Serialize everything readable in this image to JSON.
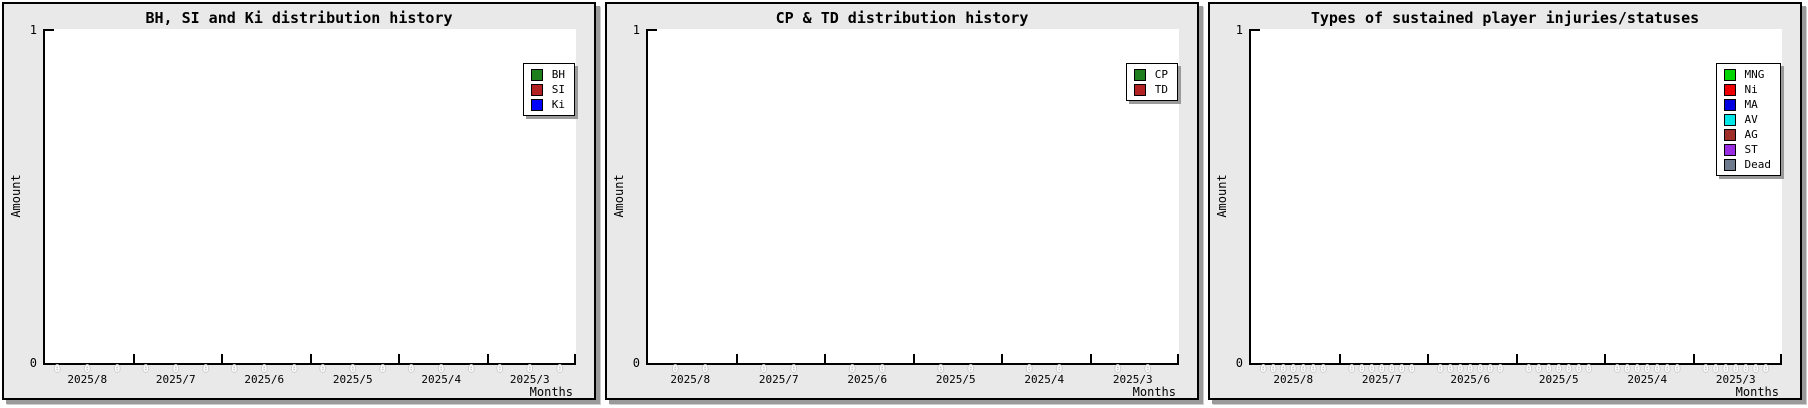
{
  "ui": {
    "value_label_color": "#ffffff",
    "panel_background": "#e9e9e9"
  },
  "chart_data": [
    {
      "type": "line",
      "title": "BH, SI and Ki distribution history",
      "xlabel": "Months",
      "ylabel": "Amount",
      "ylim": [
        0,
        1
      ],
      "yticks": [
        "0",
        "1"
      ],
      "grid": false,
      "legend_position": "right-top",
      "categories": [
        "2025/8",
        "2025/7",
        "2025/6",
        "2025/5",
        "2025/4",
        "2025/3"
      ],
      "series": [
        {
          "name": "BH",
          "color": "#1e7e1e",
          "values": [
            0,
            0,
            0,
            0,
            0,
            0
          ]
        },
        {
          "name": "SI",
          "color": "#b22222",
          "values": [
            0,
            0,
            0,
            0,
            0,
            0
          ]
        },
        {
          "name": "Ki",
          "color": "#0000ff",
          "values": [
            0,
            0,
            0,
            0,
            0,
            0
          ]
        }
      ]
    },
    {
      "type": "line",
      "title": "CP & TD distribution history",
      "xlabel": "Months",
      "ylabel": "Amount",
      "ylim": [
        0,
        1
      ],
      "yticks": [
        "0",
        "1"
      ],
      "grid": false,
      "legend_position": "right-top",
      "categories": [
        "2025/8",
        "2025/7",
        "2025/6",
        "2025/5",
        "2025/4",
        "2025/3"
      ],
      "series": [
        {
          "name": "CP",
          "color": "#1e7e1e",
          "values": [
            0,
            0,
            0,
            0,
            0,
            0
          ]
        },
        {
          "name": "TD",
          "color": "#b22222",
          "values": [
            0,
            0,
            0,
            0,
            0,
            0
          ]
        }
      ]
    },
    {
      "type": "line",
      "title": "Types of sustained player injuries/statuses",
      "xlabel": "Months",
      "ylabel": "Amount",
      "ylim": [
        0,
        1
      ],
      "yticks": [
        "0",
        "1"
      ],
      "grid": false,
      "legend_position": "right-top",
      "categories": [
        "2025/8",
        "2025/7",
        "2025/6",
        "2025/5",
        "2025/4",
        "2025/3"
      ],
      "series": [
        {
          "name": "MNG",
          "color": "#00d400",
          "values": [
            0,
            0,
            0,
            0,
            0,
            0
          ]
        },
        {
          "name": "Ni",
          "color": "#ee0000",
          "values": [
            0,
            0,
            0,
            0,
            0,
            0
          ]
        },
        {
          "name": "MA",
          "color": "#0000e0",
          "values": [
            0,
            0,
            0,
            0,
            0,
            0
          ]
        },
        {
          "name": "AV",
          "color": "#00e5e5",
          "values": [
            0,
            0,
            0,
            0,
            0,
            0
          ]
        },
        {
          "name": "AG",
          "color": "#9e2f28",
          "values": [
            0,
            0,
            0,
            0,
            0,
            0
          ]
        },
        {
          "name": "ST",
          "color": "#9a2ce2",
          "values": [
            0,
            0,
            0,
            0,
            0,
            0
          ]
        },
        {
          "name": "Dead",
          "color": "#6d7b8d",
          "values": [
            0,
            0,
            0,
            0,
            0,
            0
          ]
        }
      ]
    }
  ]
}
